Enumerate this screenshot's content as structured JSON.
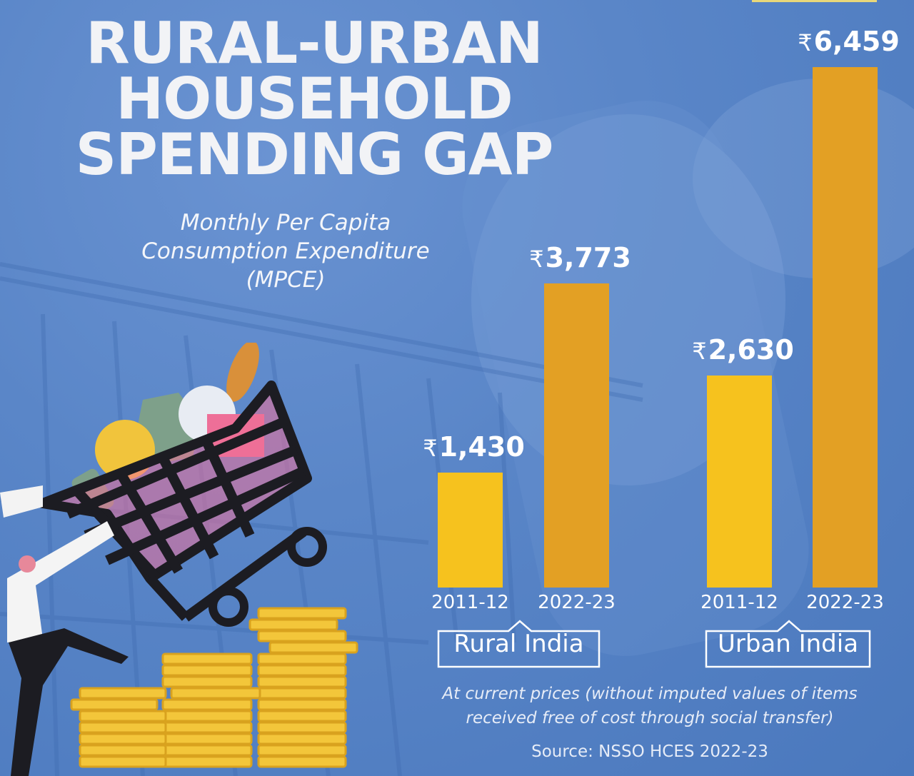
{
  "title": {
    "lines": [
      "RURAL-URBAN",
      "HOUSEHOLD",
      "SPENDING GAP"
    ]
  },
  "subtitle": {
    "lines": [
      "Monthly Per Capita",
      "Consumption Expenditure",
      "(MPCE)"
    ]
  },
  "chart_data": {
    "type": "bar",
    "title": "RURAL-URBAN HOUSEHOLD SPENDING GAP",
    "subtitle": "Monthly Per Capita Consumption Expenditure (MPCE)",
    "currency_symbol": "₹",
    "groups": [
      {
        "name": "Rural India",
        "categories": [
          "2011-12",
          "2022-23"
        ],
        "values": [
          1430,
          3773
        ],
        "labels": [
          "1,430",
          "3,773"
        ]
      },
      {
        "name": "Urban India",
        "categories": [
          "2011-12",
          "2022-23"
        ],
        "values": [
          2630,
          6459
        ],
        "labels": [
          "2,630",
          "6,459"
        ]
      }
    ],
    "colors": {
      "2011-12": "#F6C21E",
      "2022-23": "#E3A024"
    },
    "ylim": [
      0,
      6459
    ],
    "xlabel": "",
    "ylabel": "",
    "grid": false,
    "note": "At current prices (without imputed values of items received free of cost through social transfer)",
    "source": "Source: NSSO HCES 2022-23"
  },
  "note": {
    "lines": [
      "At current prices (without imputed values of items",
      "received free of cost through social transfer)"
    ]
  },
  "source": "Source: NSSO HCES 2022-23",
  "colors": {
    "background": "#5a86c8",
    "text": "#ffffff",
    "bar_old": "#F6C21E",
    "bar_new": "#E3A024"
  }
}
